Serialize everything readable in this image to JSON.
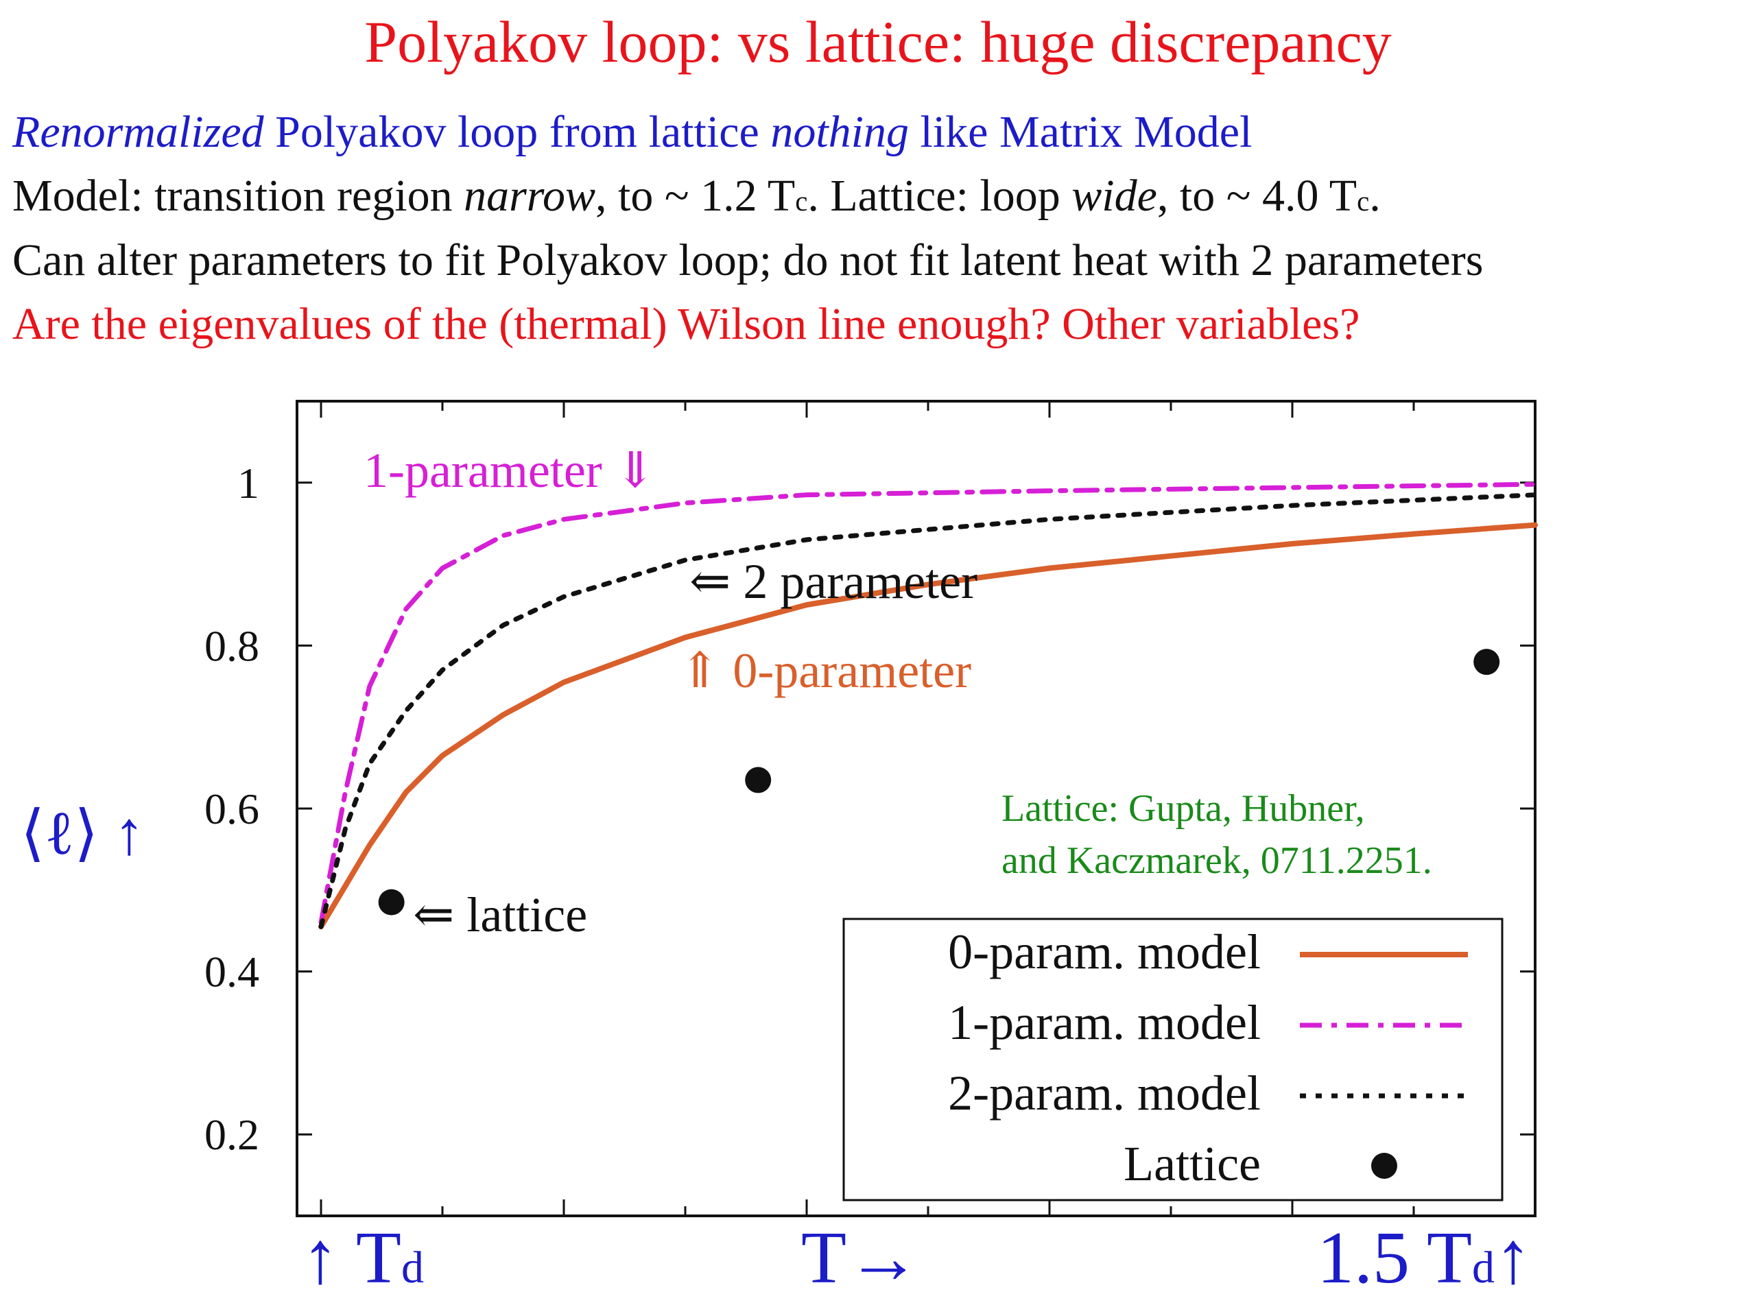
{
  "slide": {
    "title": "Polyakov loop: vs lattice: huge discrepancy",
    "line1": {
      "a": "Renormalized",
      "b": " Polyakov loop from lattice ",
      "c": "nothing",
      "d": " like Matrix Model"
    },
    "line2": {
      "a": "Model: transition region ",
      "b": "narrow",
      "c": ", to ~ 1.2 T",
      "sub1": "c",
      "d": ". Lattice: loop ",
      "e": "wide",
      "f": ", to ~ 4.0 T",
      "sub2": "c",
      "g": "."
    },
    "line3": "Can alter parameters to fit Polyakov loop; do not fit latent heat with 2 parameters",
    "line4": "Are the eigenvalues of the (thermal) Wilson line enough? Other variables?"
  },
  "colors": {
    "red": "#e8141b",
    "blue": "#1c1cc8",
    "orange": "#d95f2b",
    "magenta": "#d61fd6",
    "green": "#1a8a1a",
    "black": "#111111"
  },
  "chart_data": {
    "type": "line",
    "y_ticks": [
      "0.2",
      "0.4",
      "0.6",
      "0.8",
      "1"
    ],
    "y_tick_values": [
      0.2,
      0.4,
      0.6,
      0.8,
      1.0
    ],
    "ylim": [
      0.1,
      1.1
    ],
    "x_range": [
      1.0,
      1.5
    ],
    "ylabel": "⟨ℓ⟩ ↑",
    "x_label_left": "↑ T",
    "x_label_left_sub": "d",
    "x_label_center": "T→",
    "x_label_right": "1.5 T",
    "x_label_right_sub": "d",
    "x_label_right_arrow": "↑",
    "series": [
      {
        "name": "0-param. model",
        "color": "#d95f2b",
        "style": "solid",
        "x": [
          1.0,
          1.02,
          1.035,
          1.05,
          1.075,
          1.1,
          1.15,
          1.2,
          1.25,
          1.3,
          1.35,
          1.4,
          1.45,
          1.5
        ],
        "y": [
          0.455,
          0.555,
          0.62,
          0.665,
          0.715,
          0.755,
          0.81,
          0.85,
          0.875,
          0.895,
          0.91,
          0.925,
          0.937,
          0.948
        ]
      },
      {
        "name": "1-param. model",
        "color": "#d61fd6",
        "style": "dashdot",
        "x": [
          1.0,
          1.01,
          1.02,
          1.035,
          1.05,
          1.075,
          1.1,
          1.15,
          1.2,
          1.3,
          1.4,
          1.5
        ],
        "y": [
          0.46,
          0.62,
          0.75,
          0.845,
          0.895,
          0.935,
          0.955,
          0.975,
          0.985,
          0.99,
          0.994,
          0.998
        ]
      },
      {
        "name": "2-param. model",
        "color": "#111111",
        "style": "dotted",
        "x": [
          1.0,
          1.01,
          1.02,
          1.035,
          1.05,
          1.075,
          1.1,
          1.15,
          1.2,
          1.3,
          1.4,
          1.5
        ],
        "y": [
          0.455,
          0.575,
          0.655,
          0.72,
          0.77,
          0.825,
          0.86,
          0.905,
          0.93,
          0.955,
          0.972,
          0.985
        ]
      },
      {
        "name": "Lattice",
        "color": "#111111",
        "style": "points",
        "x": [
          1.029,
          1.18,
          1.48
        ],
        "y": [
          0.485,
          0.635,
          0.78
        ]
      }
    ],
    "legend_placement": "bottom-right",
    "annotations": {
      "one_param": "1-parameter ⇓",
      "two_param": "⇐ 2 parameter",
      "zero_param": "⇑ 0-parameter",
      "lattice": "⇐ lattice",
      "ref_line1": "Lattice: Gupta, Hubner,",
      "ref_line2": "and Kaczmarek,  0711.2251."
    }
  }
}
